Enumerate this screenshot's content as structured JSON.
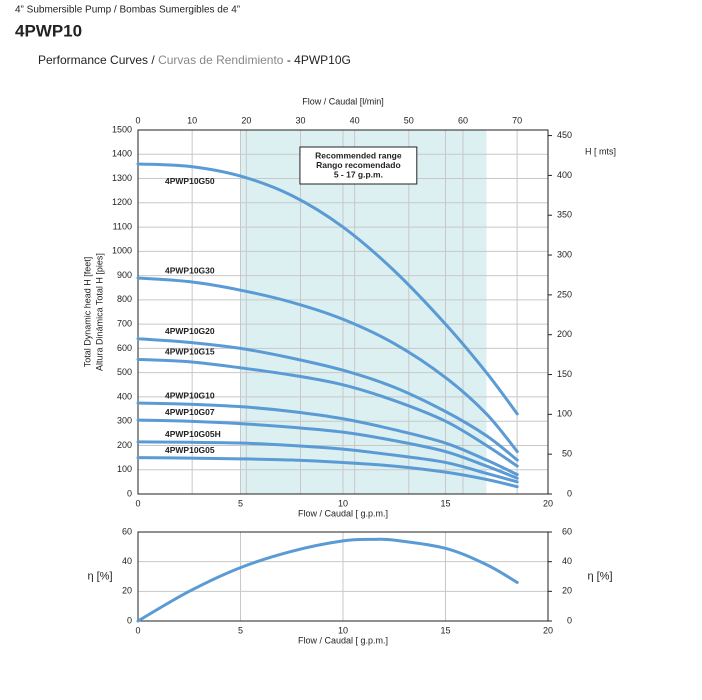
{
  "header": {
    "subtitle": "4” Submersible Pump / Bombas Sumergibles de 4”",
    "model": "4PWP10",
    "heading_en": "Performance Curves /",
    "heading_es": "Curvas de Rendimiento",
    "heading_model": "- 4PWP10G"
  },
  "chart_data": [
    {
      "type": "line",
      "xlabel": "Flow  / Caudal [ g.p.m.]",
      "x2label": "Flow / Caudal [l/min]",
      "ylabel": [
        "Total Dynamic head H [feet]",
        "Altura Dinámica Total H [pies]"
      ],
      "y2label": "H [ mts]",
      "xlim": [
        0,
        20
      ],
      "xticks": [
        0,
        5,
        10,
        15,
        20
      ],
      "x2lim": [
        0,
        75.7
      ],
      "x2ticks": [
        0,
        10,
        20,
        30,
        40,
        50,
        60,
        70
      ],
      "ylim": [
        0,
        1500
      ],
      "yticks": [
        0,
        100,
        200,
        300,
        400,
        500,
        600,
        700,
        800,
        900,
        1000,
        1100,
        1200,
        1300,
        1400,
        1500
      ],
      "y2lim": [
        0,
        457
      ],
      "y2ticks": [
        0,
        50,
        100,
        150,
        200,
        250,
        300,
        350,
        400,
        450
      ],
      "grid": true,
      "shaded_range": [
        5,
        17
      ],
      "annotation": [
        "Recommended range",
        "Rango recomendado",
        "5 - 17 g.p.m."
      ],
      "x": [
        0,
        2.5,
        5,
        7.5,
        10,
        12.5,
        15,
        17,
        18.5
      ],
      "series": [
        {
          "name": "4PWP10G50",
          "color": "#5b9bd5",
          "values": [
            1360,
            1350,
            1310,
            1230,
            1100,
            920,
            700,
            500,
            330
          ]
        },
        {
          "name": "4PWP10G30",
          "color": "#5b9bd5",
          "values": [
            890,
            875,
            840,
            790,
            720,
            620,
            480,
            330,
            175
          ]
        },
        {
          "name": "4PWP10G20",
          "color": "#5b9bd5",
          "values": [
            640,
            625,
            600,
            560,
            510,
            440,
            340,
            240,
            140
          ]
        },
        {
          "name": "4PWP10G15",
          "color": "#5b9bd5",
          "values": [
            555,
            545,
            520,
            490,
            450,
            385,
            300,
            200,
            115
          ]
        },
        {
          "name": "4PWP10G10",
          "color": "#5b9bd5",
          "values": [
            375,
            370,
            360,
            340,
            310,
            265,
            210,
            140,
            80
          ]
        },
        {
          "name": "4PWP10G07",
          "color": "#5b9bd5",
          "values": [
            305,
            300,
            290,
            275,
            255,
            220,
            175,
            115,
            65
          ]
        },
        {
          "name": "4PWP10G05H",
          "color": "#5b9bd5",
          "values": [
            215,
            213,
            210,
            200,
            185,
            160,
            130,
            85,
            50
          ]
        },
        {
          "name": "4PWP10G05",
          "color": "#5b9bd5",
          "values": [
            150,
            148,
            145,
            140,
            130,
            115,
            90,
            60,
            30
          ]
        }
      ]
    },
    {
      "type": "line",
      "xlabel": "Flow  / Caudal [ g.p.m.]",
      "ylabel": [
        "η [%]"
      ],
      "y2label": "η [%]",
      "xlim": [
        0,
        20
      ],
      "xticks": [
        0,
        5,
        10,
        15,
        20
      ],
      "ylim": [
        0,
        60
      ],
      "yticks": [
        0,
        20,
        40,
        60
      ],
      "y2lim": [
        0,
        60
      ],
      "y2ticks": [
        0,
        20,
        40,
        60
      ],
      "grid": true,
      "x": [
        0,
        2.5,
        5,
        7.5,
        10,
        11.5,
        12.5,
        15,
        17,
        18.5
      ],
      "color": "#5b9bd5",
      "values": [
        0,
        20,
        36,
        47,
        54,
        55,
        54.5,
        49,
        38,
        26
      ]
    }
  ]
}
